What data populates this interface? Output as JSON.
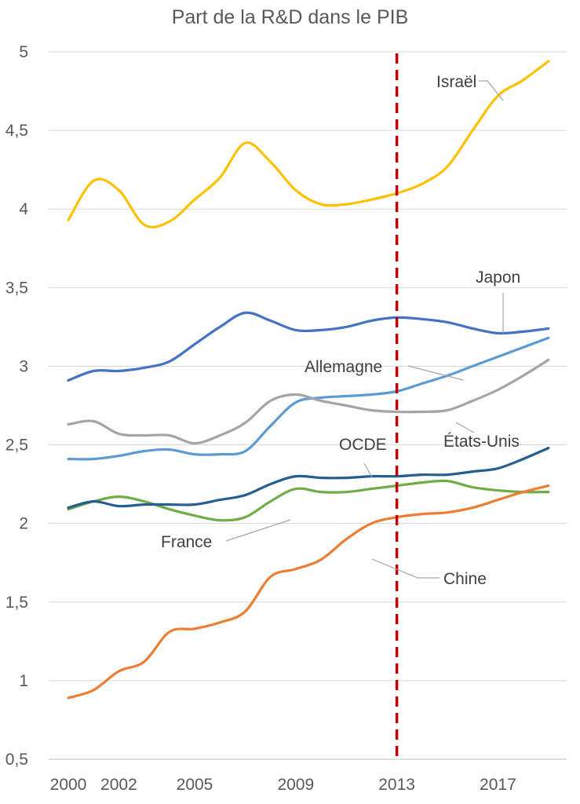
{
  "chart_data": {
    "type": "line",
    "title": "Part de la R&D dans le PIB",
    "xlabel": "",
    "ylabel": "",
    "ylim": [
      0.5,
      5
    ],
    "xlim": [
      2000,
      2019
    ],
    "yticks": [
      "0,5",
      "1",
      "1,5",
      "2",
      "2,5",
      "3",
      "3,5",
      "4",
      "4,5",
      "5"
    ],
    "xticks": [
      "2000",
      "2002",
      "2005",
      "2009",
      "2013",
      "2017"
    ],
    "grid": "horizontal",
    "reference_line": {
      "x": 2013,
      "color": "#C00000",
      "style": "dashed"
    },
    "series": [
      {
        "name": "Israël",
        "color": "#FFC000",
        "x": [
          2000,
          2001,
          2002,
          2003,
          2004,
          2005,
          2006,
          2007,
          2008,
          2009,
          2010,
          2011,
          2012,
          2013,
          2014,
          2015,
          2016,
          2017,
          2018,
          2019
        ],
        "values": [
          3.93,
          4.18,
          4.12,
          3.9,
          3.92,
          4.06,
          4.2,
          4.42,
          4.3,
          4.12,
          4.03,
          4.03,
          4.06,
          4.1,
          4.16,
          4.27,
          4.5,
          4.72,
          4.82,
          4.94
        ]
      },
      {
        "name": "Japon",
        "color": "#4472C4",
        "x": [
          2000,
          2001,
          2002,
          2003,
          2004,
          2005,
          2006,
          2007,
          2008,
          2009,
          2010,
          2011,
          2012,
          2013,
          2014,
          2015,
          2016,
          2017,
          2018,
          2019
        ],
        "values": [
          2.91,
          2.97,
          2.97,
          2.99,
          3.03,
          3.14,
          3.25,
          3.34,
          3.29,
          3.23,
          3.23,
          3.25,
          3.29,
          3.31,
          3.3,
          3.28,
          3.24,
          3.21,
          3.22,
          3.24
        ]
      },
      {
        "name": "Allemagne",
        "color": "#5B9BD5",
        "x": [
          2000,
          2001,
          2002,
          2003,
          2004,
          2005,
          2006,
          2007,
          2008,
          2009,
          2010,
          2011,
          2012,
          2013,
          2014,
          2015,
          2016,
          2017,
          2018,
          2019
        ],
        "values": [
          2.41,
          2.41,
          2.43,
          2.46,
          2.47,
          2.44,
          2.44,
          2.46,
          2.62,
          2.77,
          2.8,
          2.81,
          2.82,
          2.84,
          2.89,
          2.94,
          3.0,
          3.06,
          3.12,
          3.18
        ]
      },
      {
        "name": "États-Unis",
        "color": "#A5A5A5",
        "x": [
          2000,
          2001,
          2002,
          2003,
          2004,
          2005,
          2006,
          2007,
          2008,
          2009,
          2010,
          2011,
          2012,
          2013,
          2014,
          2015,
          2016,
          2017,
          2018,
          2019
        ],
        "values": [
          2.63,
          2.65,
          2.57,
          2.56,
          2.56,
          2.51,
          2.56,
          2.64,
          2.78,
          2.82,
          2.78,
          2.75,
          2.72,
          2.71,
          2.71,
          2.72,
          2.78,
          2.85,
          2.94,
          3.04
        ]
      },
      {
        "name": "OCDE",
        "color": "#255E91",
        "x": [
          2000,
          2001,
          2002,
          2003,
          2004,
          2005,
          2006,
          2007,
          2008,
          2009,
          2010,
          2011,
          2012,
          2013,
          2014,
          2015,
          2016,
          2017,
          2018,
          2019
        ],
        "values": [
          2.1,
          2.14,
          2.11,
          2.12,
          2.12,
          2.12,
          2.15,
          2.18,
          2.25,
          2.3,
          2.29,
          2.29,
          2.3,
          2.3,
          2.31,
          2.31,
          2.33,
          2.35,
          2.41,
          2.48
        ]
      },
      {
        "name": "France",
        "color": "#70AD47",
        "x": [
          2000,
          2001,
          2002,
          2003,
          2004,
          2005,
          2006,
          2007,
          2008,
          2009,
          2010,
          2011,
          2012,
          2013,
          2014,
          2015,
          2016,
          2017,
          2018,
          2019
        ],
        "values": [
          2.09,
          2.14,
          2.17,
          2.14,
          2.09,
          2.05,
          2.02,
          2.04,
          2.14,
          2.22,
          2.2,
          2.2,
          2.22,
          2.24,
          2.26,
          2.27,
          2.23,
          2.21,
          2.2,
          2.2
        ]
      },
      {
        "name": "Chine",
        "color": "#ED7D31",
        "x": [
          2000,
          2001,
          2002,
          2003,
          2004,
          2005,
          2006,
          2007,
          2008,
          2009,
          2010,
          2011,
          2012,
          2013,
          2014,
          2015,
          2016,
          2017,
          2018,
          2019
        ],
        "values": [
          0.89,
          0.94,
          1.06,
          1.12,
          1.31,
          1.33,
          1.37,
          1.44,
          1.66,
          1.71,
          1.77,
          1.9,
          2.0,
          2.04,
          2.06,
          2.07,
          2.1,
          2.15,
          2.2,
          2.24
        ]
      }
    ]
  }
}
